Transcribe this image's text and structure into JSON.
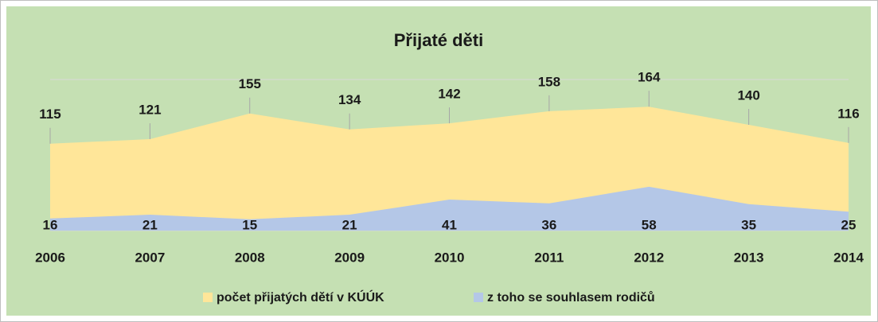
{
  "chart_data": {
    "type": "area",
    "title": "Přijaté děti",
    "categories": [
      "2006",
      "2007",
      "2008",
      "2009",
      "2010",
      "2011",
      "2012",
      "2013",
      "2014"
    ],
    "series": [
      {
        "name": "počet přijatých dětí v KÚÚK",
        "color": "#ffe699",
        "values": [
          115,
          121,
          155,
          134,
          142,
          158,
          164,
          140,
          116
        ]
      },
      {
        "name": "z toho se souhlasem rodičů",
        "color": "#b4c7e7",
        "values": [
          16,
          21,
          15,
          21,
          41,
          36,
          58,
          35,
          25
        ]
      }
    ],
    "ylim": [
      0,
      200
    ],
    "grid": true,
    "legend": "bottom"
  }
}
